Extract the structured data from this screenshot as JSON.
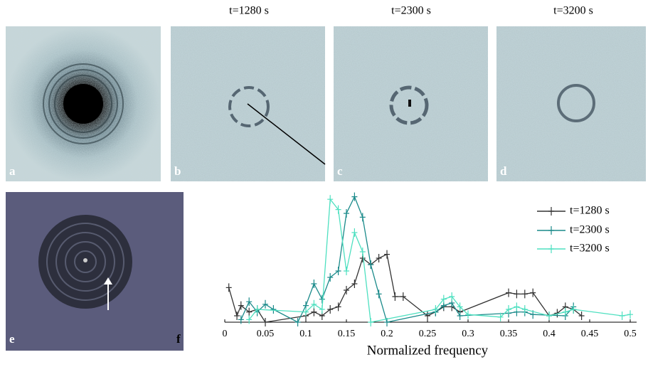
{
  "titles": [
    "t=1280 s",
    "t=2300 s",
    "t=3200 s"
  ],
  "panel_labels": [
    "a",
    "b",
    "c",
    "d",
    "e",
    "f"
  ],
  "chart_data": {
    "type": "line",
    "x_label": "Normalized frequency",
    "xlim": [
      0,
      0.5
    ],
    "ylim": [
      0,
      1
    ],
    "xticks": [
      0,
      0.05,
      0.1,
      0.15,
      0.2,
      0.25,
      0.3,
      0.35,
      0.4,
      0.45,
      0.5
    ],
    "legend": "upper right",
    "series": [
      {
        "name": "t=1280 s",
        "color": "#333333",
        "x": [
          0.005,
          0.015,
          0.02,
          0.03,
          0.04,
          0.05,
          0.1,
          0.11,
          0.12,
          0.13,
          0.14,
          0.15,
          0.16,
          0.17,
          0.18,
          0.19,
          0.2,
          0.21,
          0.22,
          0.25,
          0.26,
          0.27,
          0.28,
          0.29,
          0.35,
          0.36,
          0.37,
          0.38,
          0.4,
          0.41,
          0.42,
          0.43,
          0.44
        ],
        "values": [
          0.27,
          0.05,
          0.13,
          0.08,
          0.1,
          0,
          0.05,
          0.08,
          0.05,
          0.1,
          0.12,
          0.25,
          0.3,
          0.5,
          0.45,
          0.5,
          0.53,
          0.2,
          0.2,
          0.05,
          0.08,
          0.12,
          0.12,
          0.08,
          0.23,
          0.22,
          0.22,
          0.23,
          0.05,
          0.07,
          0.12,
          0.1,
          0.05
        ]
      },
      {
        "name": "t=2300 s",
        "color": "#1a8a8a",
        "x": [
          0.02,
          0.03,
          0.04,
          0.05,
          0.06,
          0.09,
          0.1,
          0.11,
          0.12,
          0.13,
          0.14,
          0.15,
          0.16,
          0.17,
          0.18,
          0.19,
          0.2,
          0.26,
          0.27,
          0.28,
          0.29,
          0.35,
          0.36,
          0.37,
          0.38,
          0.42,
          0.43
        ],
        "values": [
          0.02,
          0.16,
          0.08,
          0.14,
          0.1,
          0,
          0.13,
          0.3,
          0.18,
          0.35,
          0.4,
          0.85,
          0.98,
          0.82,
          0.45,
          0.22,
          0,
          0.08,
          0.13,
          0.15,
          0.05,
          0.07,
          0.08,
          0.08,
          0.06,
          0.05,
          0.12
        ]
      },
      {
        "name": "t=3200 s",
        "color": "#4ee0c0",
        "x": [
          0.03,
          0.04,
          0.1,
          0.11,
          0.12,
          0.13,
          0.14,
          0.15,
          0.16,
          0.17,
          0.18,
          0.26,
          0.27,
          0.28,
          0.29,
          0.3,
          0.34,
          0.35,
          0.36,
          0.37,
          0.4,
          0.42,
          0.43,
          0.49,
          0.5
        ],
        "values": [
          0.02,
          0.1,
          0.08,
          0.14,
          0.1,
          0.96,
          0.88,
          0.4,
          0.7,
          0.55,
          0,
          0.1,
          0.18,
          0.2,
          0.12,
          0.06,
          0.04,
          0.1,
          0.12,
          0.1,
          0.05,
          0.08,
          0.1,
          0.05,
          0.06
        ]
      }
    ]
  }
}
